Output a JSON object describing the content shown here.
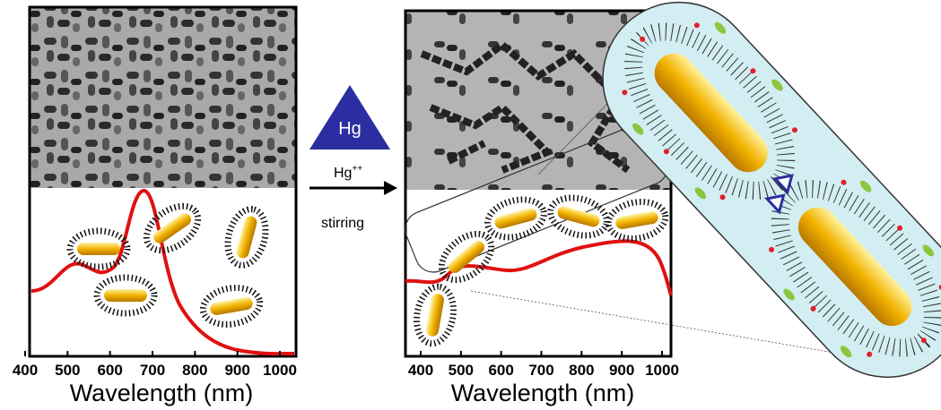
{
  "left_panel": {
    "xticks": [
      400,
      500,
      600,
      700,
      800,
      900,
      1000
    ],
    "xlabel": "Wavelength (nm)"
  },
  "reagent": {
    "symbol": "Hg",
    "ion": "Hg",
    "charge": "++",
    "action": "stirring"
  },
  "right_panel": {
    "xticks": [
      400,
      500,
      600,
      700,
      800,
      900,
      1000
    ],
    "xlabel": "Wavelength (nm)"
  }
}
